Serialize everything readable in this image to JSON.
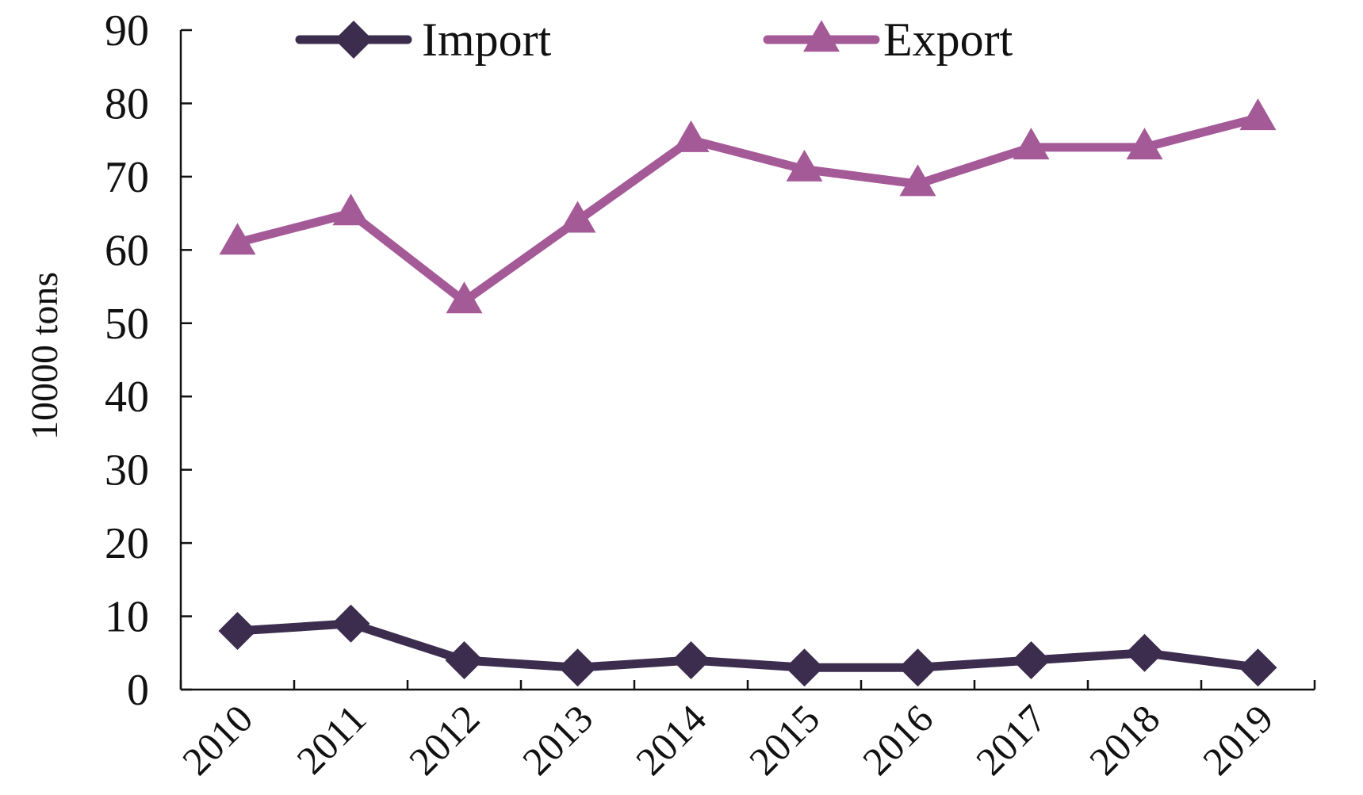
{
  "chart_data": {
    "type": "line",
    "title": "",
    "xlabel": "",
    "ylabel": "10000 tons",
    "ylim": [
      0,
      90
    ],
    "yticks": [
      0,
      10,
      20,
      30,
      40,
      50,
      60,
      70,
      80,
      90
    ],
    "categories": [
      "2010",
      "2011",
      "2012",
      "2013",
      "2014",
      "2015",
      "2016",
      "2017",
      "2018",
      "2019"
    ],
    "series": [
      {
        "name": "Import",
        "marker": "diamond",
        "color": "#3c2d4e",
        "values": [
          8,
          9,
          4,
          3,
          4,
          3,
          3,
          4,
          5,
          3
        ]
      },
      {
        "name": "Export",
        "marker": "triangle",
        "color": "#a55a98",
        "values": [
          61,
          65,
          53,
          64,
          75,
          71,
          69,
          74,
          74,
          78
        ]
      }
    ],
    "grid": false,
    "legend_position": "top"
  }
}
